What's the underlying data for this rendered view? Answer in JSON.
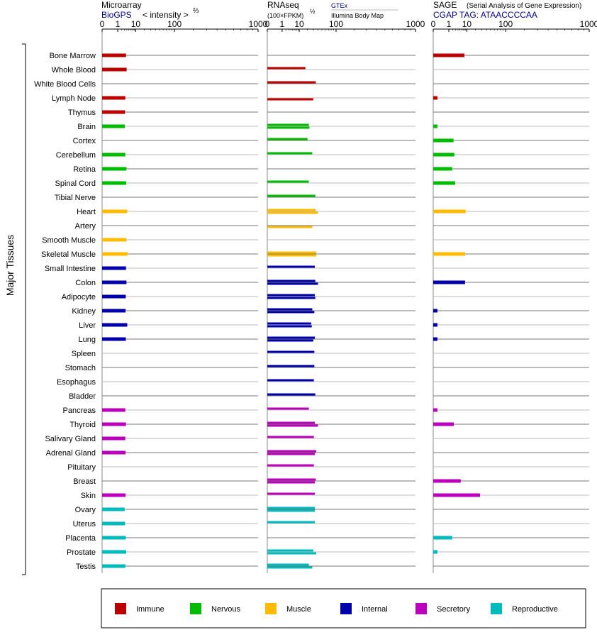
{
  "header": {
    "microarray": {
      "title": "Microarray",
      "source": "BioGPS",
      "unit_prefix": "< intensity >",
      "unit_exp": "⅔"
    },
    "rnaseq": {
      "title": "RNAseq",
      "unit_prefix": "(100×FPKM)",
      "unit_exp": "½",
      "source_a": "GTEx",
      "source_b": "Illumina Body Map"
    },
    "sage": {
      "title": "SAGE",
      "subtitle": "(Serial Analysis of Gene Expression)",
      "tag": "CGAP TAG: ATAACCCCAA"
    }
  },
  "ylabel": "Major Tissues",
  "colors": {
    "Immune": "#bb0000",
    "Nervous": "#00bb00",
    "Muscle": "#ffbb00",
    "Internal": "#0000aa",
    "Secretory": "#bb00bb",
    "Reproductive": "#00bbbb"
  },
  "chart_data": {
    "type": "bar",
    "orientation": "horizontal",
    "scale": "power",
    "ticks": [
      "0",
      "1",
      "10",
      "100",
      "1000"
    ],
    "xlim": [
      0,
      1000
    ],
    "categories": [
      "Bone Marrow",
      "Whole Blood",
      "White Blood Cells",
      "Lymph Node",
      "Thymus",
      "Brain",
      "Cortex",
      "Cerebellum",
      "Retina",
      "Spinal Cord",
      "Tibial Nerve",
      "Heart",
      "Artery",
      "Smooth Muscle",
      "Skeletal Muscle",
      "Small Intestine",
      "Colon",
      "Adipocyte",
      "Kidney",
      "Liver",
      "Lung",
      "Spleen",
      "Stomach",
      "Esophagus",
      "Bladder",
      "Pancreas",
      "Thyroid",
      "Salivary Gland",
      "Adrenal Gland",
      "Pituitary",
      "Breast",
      "Skin",
      "Ovary",
      "Uterus",
      "Placenta",
      "Prostate",
      "Testis"
    ],
    "groups": [
      "Immune",
      "Immune",
      "Immune",
      "Immune",
      "Immune",
      "Nervous",
      "Nervous",
      "Nervous",
      "Nervous",
      "Nervous",
      "Nervous",
      "Muscle",
      "Muscle",
      "Muscle",
      "Muscle",
      "Internal",
      "Internal",
      "Internal",
      "Internal",
      "Internal",
      "Internal",
      "Internal",
      "Internal",
      "Internal",
      "Internal",
      "Secretory",
      "Secretory",
      "Secretory",
      "Secretory",
      "Secretory",
      "Secretory",
      "Secretory",
      "Reproductive",
      "Reproductive",
      "Reproductive",
      "Reproductive",
      "Reproductive"
    ],
    "panels": [
      {
        "name": "Microarray",
        "values": [
          3.6,
          3.9,
          null,
          3.3,
          3.2,
          3.1,
          null,
          3.3,
          3.8,
          3.7,
          null,
          4.2,
          null,
          3.8,
          4.4,
          3.6,
          3.8,
          3.5,
          3.4,
          4.2,
          3.5,
          null,
          null,
          null,
          null,
          3.3,
          3.6,
          3.3,
          3.4,
          null,
          null,
          3.4,
          3.0,
          3.2,
          3.5,
          3.7,
          3.3
        ]
      },
      {
        "name": "RNAseq",
        "values_a": [
          null,
          17,
          35,
          null,
          null,
          22,
          20,
          28,
          null,
          22,
          34,
          35,
          null,
          null,
          36,
          33,
          34,
          33,
          28,
          26,
          33,
          32,
          32,
          31,
          34,
          22,
          33,
          31,
          36,
          31,
          35,
          33,
          33,
          33,
          null,
          30,
          22
        ],
        "values_b": [
          null,
          null,
          null,
          30,
          null,
          23,
          null,
          null,
          null,
          null,
          null,
          40,
          28,
          null,
          36,
          null,
          40,
          34,
          32,
          27,
          30,
          null,
          null,
          null,
          null,
          null,
          40,
          null,
          33,
          null,
          33,
          null,
          33,
          null,
          null,
          36,
          28
        ]
      },
      {
        "name": "SAGE",
        "values": [
          8,
          null,
          null,
          0.02,
          null,
          0.02,
          2.2,
          2.5,
          1.8,
          2.8,
          null,
          9,
          null,
          null,
          8.5,
          null,
          8.5,
          null,
          0.02,
          0.02,
          0.02,
          null,
          null,
          null,
          null,
          0.02,
          2.3,
          null,
          null,
          null,
          5.5,
          27,
          null,
          null,
          1.8,
          0.02,
          null
        ]
      }
    ]
  },
  "legend": {
    "items": [
      {
        "name": "Immune",
        "label": "Immune"
      },
      {
        "name": "Nervous",
        "label": "Nervous"
      },
      {
        "name": "Muscle",
        "label": "Muscle"
      },
      {
        "name": "Internal",
        "label": "Internal"
      },
      {
        "name": "Secretory",
        "label": "Secretory"
      },
      {
        "name": "Reproductive",
        "label": "Reproductive"
      }
    ]
  }
}
